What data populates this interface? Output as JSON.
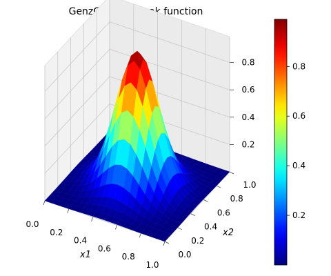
{
  "chart_data": {
    "type": "surface",
    "title": "GenzGaussianPeak function",
    "xlabel": "x1",
    "ylabel": "x2",
    "zlabel": "",
    "x": [
      0.0,
      0.05,
      0.1,
      0.15,
      0.2,
      0.25,
      0.3,
      0.35,
      0.4,
      0.45,
      0.5,
      0.55,
      0.6,
      0.65,
      0.7,
      0.75,
      0.8,
      0.85,
      0.9,
      0.95,
      1.0
    ],
    "y": [
      0.0,
      0.05,
      0.1,
      0.15,
      0.2,
      0.25,
      0.3,
      0.35,
      0.4,
      0.45,
      0.5,
      0.55,
      0.6,
      0.65,
      0.7,
      0.75,
      0.8,
      0.85,
      0.9,
      0.95,
      1.0
    ],
    "peak": {
      "x1": 0.5,
      "x2": 0.5,
      "value": 0.99
    },
    "xlim": [
      0,
      1
    ],
    "ylim": [
      0,
      1
    ],
    "zlim": [
      0,
      0.99
    ],
    "xticks": [
      "0.0",
      "0.2",
      "0.4",
      "0.6",
      "0.8",
      "1.0"
    ],
    "yticks": [
      "0.0",
      "0.2",
      "0.4",
      "0.6",
      "0.8",
      "1.0"
    ],
    "zticks": [
      "0.2",
      "0.4",
      "0.6",
      "0.8"
    ],
    "colormap": "jet",
    "colorbar": {
      "range": [
        0,
        0.99
      ],
      "ticks": [
        "0.2",
        "0.4",
        "0.6",
        "0.8"
      ]
    },
    "grid": true
  }
}
